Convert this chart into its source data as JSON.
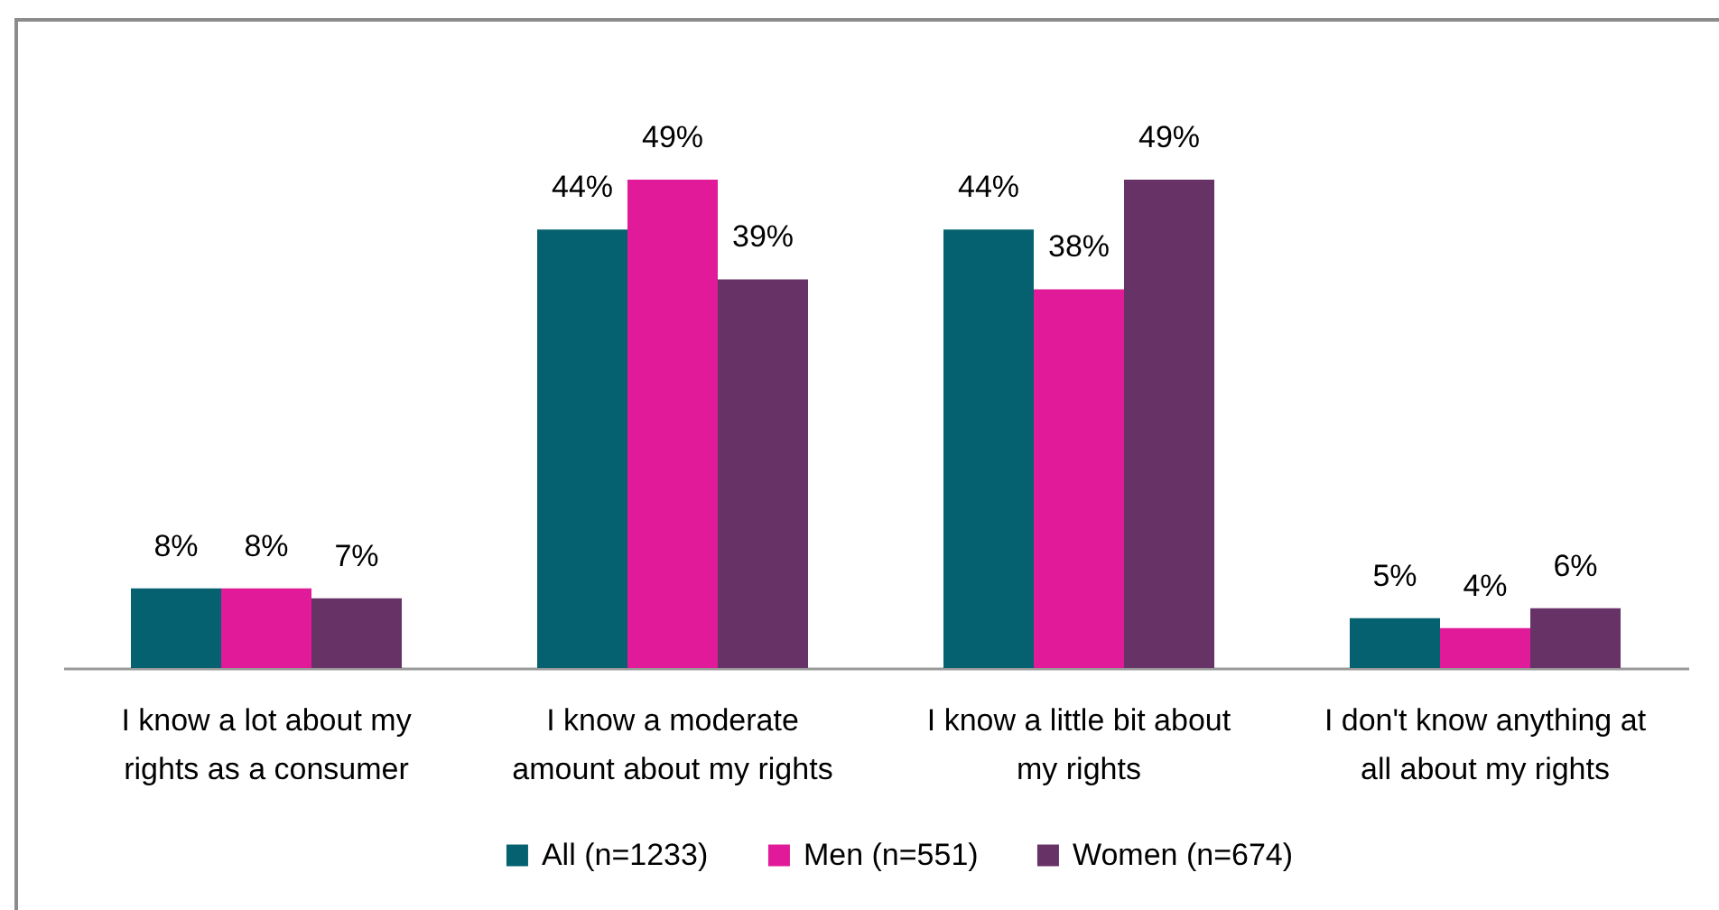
{
  "chart_data": {
    "type": "bar",
    "categories": [
      "I know a lot about my rights as a consumer",
      "I know a moderate amount about my rights",
      "I know a little bit about my rights",
      "I don't know anything at all about my rights"
    ],
    "series": [
      {
        "name": "All (n=1233)",
        "color": "#05616f",
        "values": [
          8,
          44,
          44,
          5
        ],
        "value_labels": [
          "8%",
          "44%",
          "44%",
          "5%"
        ]
      },
      {
        "name": "Men (n=551)",
        "color": "#e01a98",
        "values": [
          8,
          49,
          38,
          4
        ],
        "value_labels": [
          "8%",
          "49%",
          "38%",
          "4%"
        ]
      },
      {
        "name": "Women (n=674)",
        "color": "#673366",
        "values": [
          7,
          39,
          49,
          6
        ],
        "value_labels": [
          "7%",
          "39%",
          "49%",
          "6%"
        ]
      }
    ],
    "legend": "bottom"
  }
}
